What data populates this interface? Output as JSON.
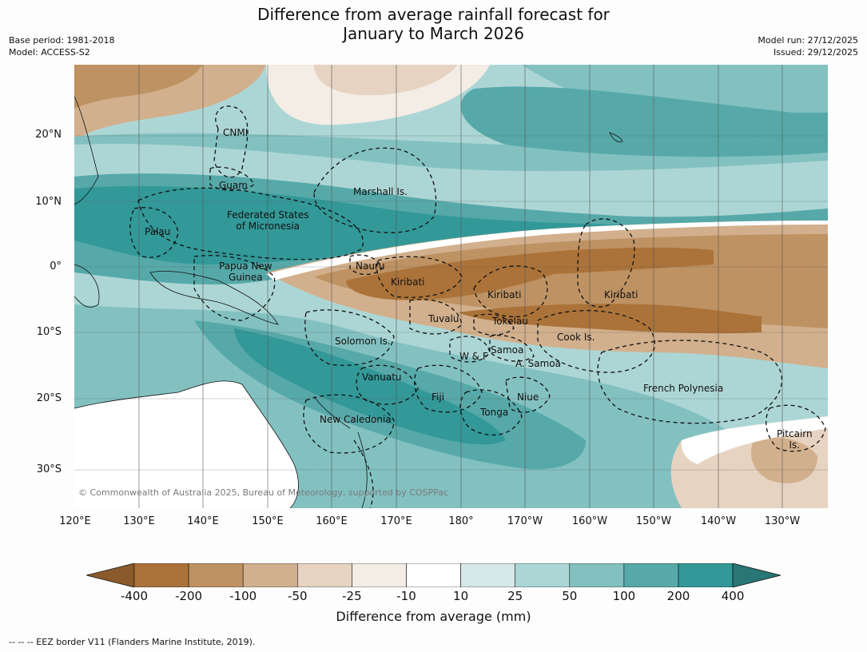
{
  "title_line1": "Difference from average rainfall forecast for",
  "title_line2": "January to March 2026",
  "base_period": "Base period: 1981-2018",
  "model": "Model: ACCESS-S2",
  "model_run": "Model run: 27/12/2025",
  "issued": "Issued: 29/12/2025",
  "copyright": "© Commonwealth of Australia 2025, Bureau of Meteorology, supported by COSPPac",
  "lat_labels": [
    "20°N",
    "10°N",
    "0°",
    "10°S",
    "20°S",
    "30°S"
  ],
  "lon_labels": [
    "120°E",
    "130°E",
    "140°E",
    "150°E",
    "160°E",
    "170°E",
    "180°",
    "170°W",
    "160°W",
    "150°W",
    "140°W",
    "130°W"
  ],
  "places": {
    "cnmi": "CNMI",
    "guam": "Guam",
    "marshall": "Marshall Is.",
    "fsm": "Federated States\nof Micronesia",
    "palau": "Palau",
    "png": "Papua New\nGuinea",
    "nauru": "Nauru",
    "kiribati_w": "Kiribati",
    "kiribati_c": "Kiribati",
    "kiribati_e": "Kiribati",
    "tuvalu": "Tuvalu",
    "tokelau": "Tokelau",
    "cook": "Cook Is.",
    "solomon": "Solomon Is.",
    "wf": "W & F",
    "samoa": "Samoa",
    "asamoa": "A. Samoa",
    "vanuatu": "Vanuatu",
    "fiji": "Fiji",
    "niue": "Niue",
    "tonga": "Tonga",
    "new_caledonia": "New Caledonia",
    "french_polynesia": "French Polynesia",
    "pitcairn": "Pitcairn\nIs."
  },
  "colorbar": {
    "labels": [
      "-400",
      "-200",
      "-100",
      "-50",
      "-25",
      "-10",
      "10",
      "25",
      "50",
      "100",
      "200",
      "400"
    ],
    "colors": [
      "#8a5a2b",
      "#ab7339",
      "#be9263",
      "#d2b08d",
      "#e6d3c1",
      "#f3ede6",
      "#ffffff",
      "#d5e9e8",
      "#acd6d5",
      "#83c1c1",
      "#57a9a9",
      "#339898",
      "#287676"
    ],
    "title": "Difference from average (mm)"
  },
  "footnote": "--  --  -- EEZ border V11 (Flanders Marine Institute, 2019)."
}
